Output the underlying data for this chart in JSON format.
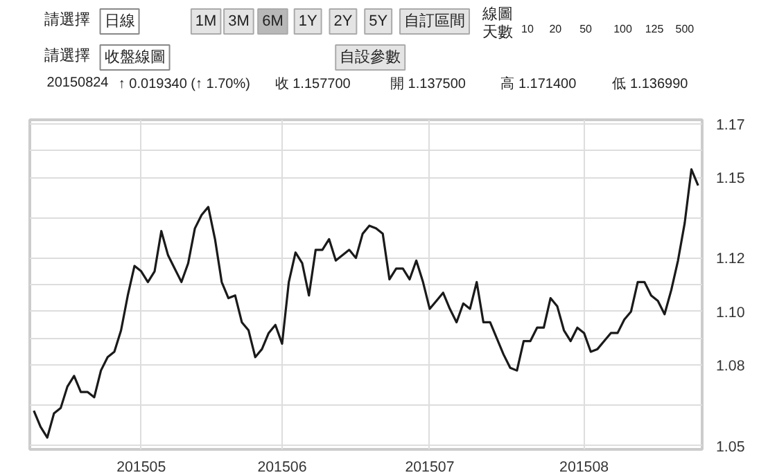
{
  "chart_data": {
    "type": "line",
    "annotations": [
      "請選擇",
      "日線",
      "1M",
      "3M",
      "6M",
      "1Y",
      "2Y",
      "5Y",
      "自訂區間",
      "線圖",
      "天數",
      "10",
      "20",
      "50",
      "100",
      "125",
      "500",
      "請選擇",
      "收盤線圖",
      "自設參數",
      "20150824",
      "↑ 0.019340 (↑ 1.70%)",
      "收 1.157700",
      "開 1.137500",
      "高 1.171400",
      "低 1.136990"
    ],
    "categories": [
      null,
      null,
      null,
      null,
      null,
      null,
      null,
      null,
      null,
      null,
      null,
      null,
      null,
      null,
      null,
      null,
      "201505",
      null,
      null,
      null,
      null,
      null,
      null,
      null,
      null,
      null,
      null,
      null,
      null,
      null,
      null,
      null,
      null,
      null,
      null,
      null,
      null,
      "201506",
      null,
      null,
      null,
      null,
      null,
      null,
      null,
      null,
      null,
      null,
      null,
      null,
      null,
      null,
      null,
      null,
      null,
      null,
      null,
      null,
      null,
      "201507",
      null,
      null,
      null,
      null,
      null,
      null,
      null,
      null,
      null,
      null,
      null,
      null,
      null,
      null,
      null,
      null,
      null,
      null,
      null,
      null,
      null,
      null,
      "201508",
      null,
      null,
      null,
      null,
      null,
      null,
      null,
      null,
      null,
      null,
      null,
      null,
      null,
      null,
      null,
      null,
      null
    ],
    "series": [
      {
        "color": "#1a1a1a",
        "values": [
          1.063,
          1.057,
          1.053,
          1.062,
          1.064,
          1.072,
          1.076,
          1.07,
          1.07,
          1.068,
          1.078,
          1.083,
          1.085,
          1.093,
          1.106,
          1.117,
          1.115,
          1.111,
          1.115,
          1.13,
          1.121,
          1.116,
          1.111,
          1.118,
          1.131,
          1.136,
          1.139,
          1.127,
          1.111,
          1.105,
          1.106,
          1.096,
          1.093,
          1.083,
          1.086,
          1.092,
          1.095,
          1.088,
          1.111,
          1.122,
          1.118,
          1.106,
          1.123,
          1.123,
          1.127,
          1.119,
          1.121,
          1.123,
          1.12,
          1.129,
          1.132,
          1.131,
          1.129,
          1.112,
          1.116,
          1.116,
          1.112,
          1.119,
          1.111,
          1.101,
          1.104,
          1.107,
          1.101,
          1.096,
          1.103,
          1.101,
          1.111,
          1.096,
          1.096,
          1.09,
          1.084,
          1.079,
          1.078,
          1.089,
          1.089,
          1.094,
          1.094,
          1.105,
          1.102,
          1.093,
          1.089,
          1.094,
          1.092,
          1.085,
          1.086,
          1.089,
          1.092,
          1.092,
          1.097,
          1.1,
          1.111,
          1.111,
          1.106,
          1.104,
          1.099,
          1.108,
          1.119,
          1.133,
          1.153,
          1.147
        ]
      }
    ],
    "ylim": [
      1.0486,
      1.1715
    ],
    "yticks": [
      1.05,
      {
        "value": 1.065,
        "label": null
      },
      1.08,
      {
        "value": 1.09,
        "label": null
      },
      {
        "value": 1.1,
        "label": "1.10"
      },
      {
        "value": 1.11,
        "label": null
      },
      1.12,
      {
        "value": 1.135,
        "label": null
      },
      1.15,
      {
        "value": 1.16,
        "label": null
      },
      1.17
    ],
    "grid": true
  }
}
